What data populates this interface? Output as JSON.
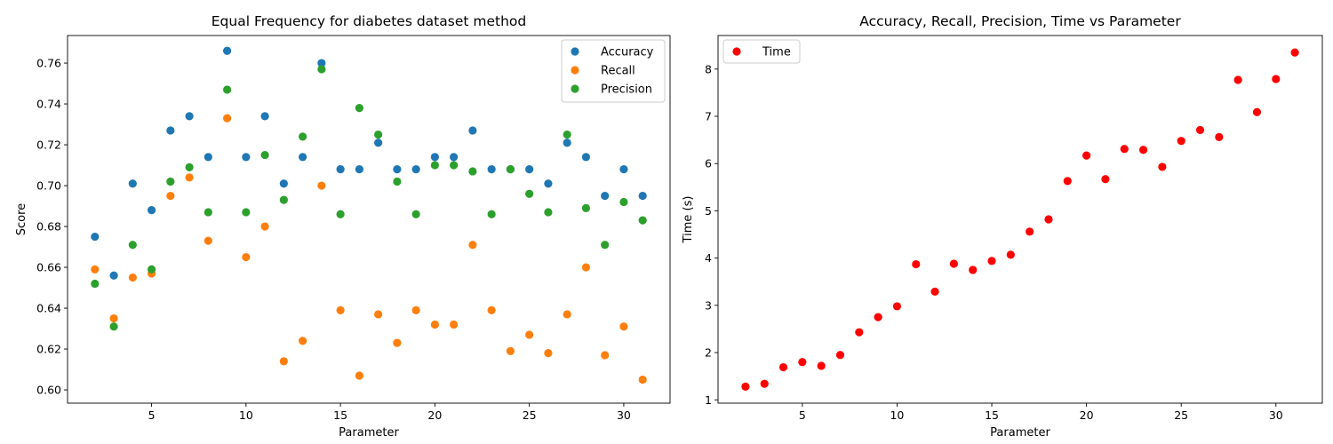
{
  "chart_data": [
    {
      "type": "scatter",
      "title": "Equal Frequency for diabetes dataset method",
      "xlabel": "Parameter",
      "ylabel": "Score",
      "xlim": [
        0.55,
        32.45
      ],
      "ylim": [
        0.5935,
        0.7735
      ],
      "xticks": [
        5,
        10,
        15,
        20,
        25,
        30
      ],
      "yticks": [
        0.6,
        0.62,
        0.64,
        0.66,
        0.68,
        0.7,
        0.72,
        0.74,
        0.76
      ],
      "ytick_labels": [
        "0.60",
        "0.62",
        "0.64",
        "0.66",
        "0.68",
        "0.70",
        "0.72",
        "0.74",
        "0.76"
      ],
      "grid": false,
      "legend_position": "top-right",
      "x": [
        2,
        3,
        4,
        5,
        6,
        7,
        8,
        9,
        10,
        11,
        12,
        13,
        14,
        15,
        16,
        17,
        18,
        19,
        20,
        21,
        22,
        23,
        24,
        25,
        26,
        27,
        28,
        29,
        30,
        31
      ],
      "series": [
        {
          "name": "Accuracy",
          "color": "#1f77b4",
          "values": [
            0.675,
            0.656,
            0.701,
            0.688,
            0.727,
            0.734,
            0.714,
            0.766,
            0.714,
            0.734,
            0.701,
            0.714,
            0.76,
            0.708,
            0.708,
            0.721,
            0.708,
            0.708,
            0.714,
            0.714,
            0.727,
            0.708,
            0.708,
            0.708,
            0.701,
            0.721,
            0.714,
            0.695,
            0.708,
            0.695
          ]
        },
        {
          "name": "Recall",
          "color": "#ff7f0e",
          "values": [
            0.659,
            0.635,
            0.655,
            0.657,
            0.695,
            0.704,
            0.673,
            0.733,
            0.665,
            0.68,
            0.614,
            0.624,
            0.7,
            0.639,
            0.607,
            0.637,
            0.623,
            0.639,
            0.632,
            0.632,
            0.671,
            0.639,
            0.619,
            0.627,
            0.618,
            0.637,
            0.66,
            0.617,
            0.631,
            0.605
          ]
        },
        {
          "name": "Precision",
          "color": "#2ca02c",
          "values": [
            0.652,
            0.631,
            0.671,
            0.659,
            0.702,
            0.709,
            0.687,
            0.747,
            0.687,
            0.715,
            0.693,
            0.724,
            0.757,
            0.686,
            0.738,
            0.725,
            0.702,
            0.686,
            0.71,
            0.71,
            0.707,
            0.686,
            0.708,
            0.696,
            0.687,
            0.725,
            0.689,
            0.671,
            0.692,
            0.683
          ]
        }
      ]
    },
    {
      "type": "scatter",
      "title": "Accuracy, Recall, Precision, Time vs Parameter",
      "xlabel": "Parameter",
      "ylabel": "Time (s)",
      "xlim": [
        0.55,
        32.45
      ],
      "ylim": [
        0.93,
        8.71
      ],
      "xticks": [
        5,
        10,
        15,
        20,
        25,
        30
      ],
      "yticks": [
        1,
        2,
        3,
        4,
        5,
        6,
        7,
        8
      ],
      "ytick_labels": [
        "1",
        "2",
        "3",
        "4",
        "5",
        "6",
        "7",
        "8"
      ],
      "grid": false,
      "legend_position": "top-left",
      "x": [
        2,
        3,
        4,
        5,
        6,
        7,
        8,
        9,
        10,
        11,
        12,
        13,
        14,
        15,
        16,
        17,
        18,
        19,
        20,
        21,
        22,
        23,
        24,
        25,
        26,
        27,
        28,
        29,
        30,
        31
      ],
      "series": [
        {
          "name": "Time",
          "color": "#ff0000",
          "values": [
            1.28,
            1.34,
            1.69,
            1.8,
            1.72,
            1.95,
            2.43,
            2.75,
            2.98,
            3.87,
            3.29,
            3.88,
            3.75,
            3.94,
            4.07,
            4.56,
            4.82,
            5.63,
            6.17,
            5.67,
            6.31,
            6.29,
            5.93,
            6.48,
            6.71,
            6.56,
            7.77,
            7.09,
            7.79,
            8.35
          ]
        }
      ]
    }
  ]
}
